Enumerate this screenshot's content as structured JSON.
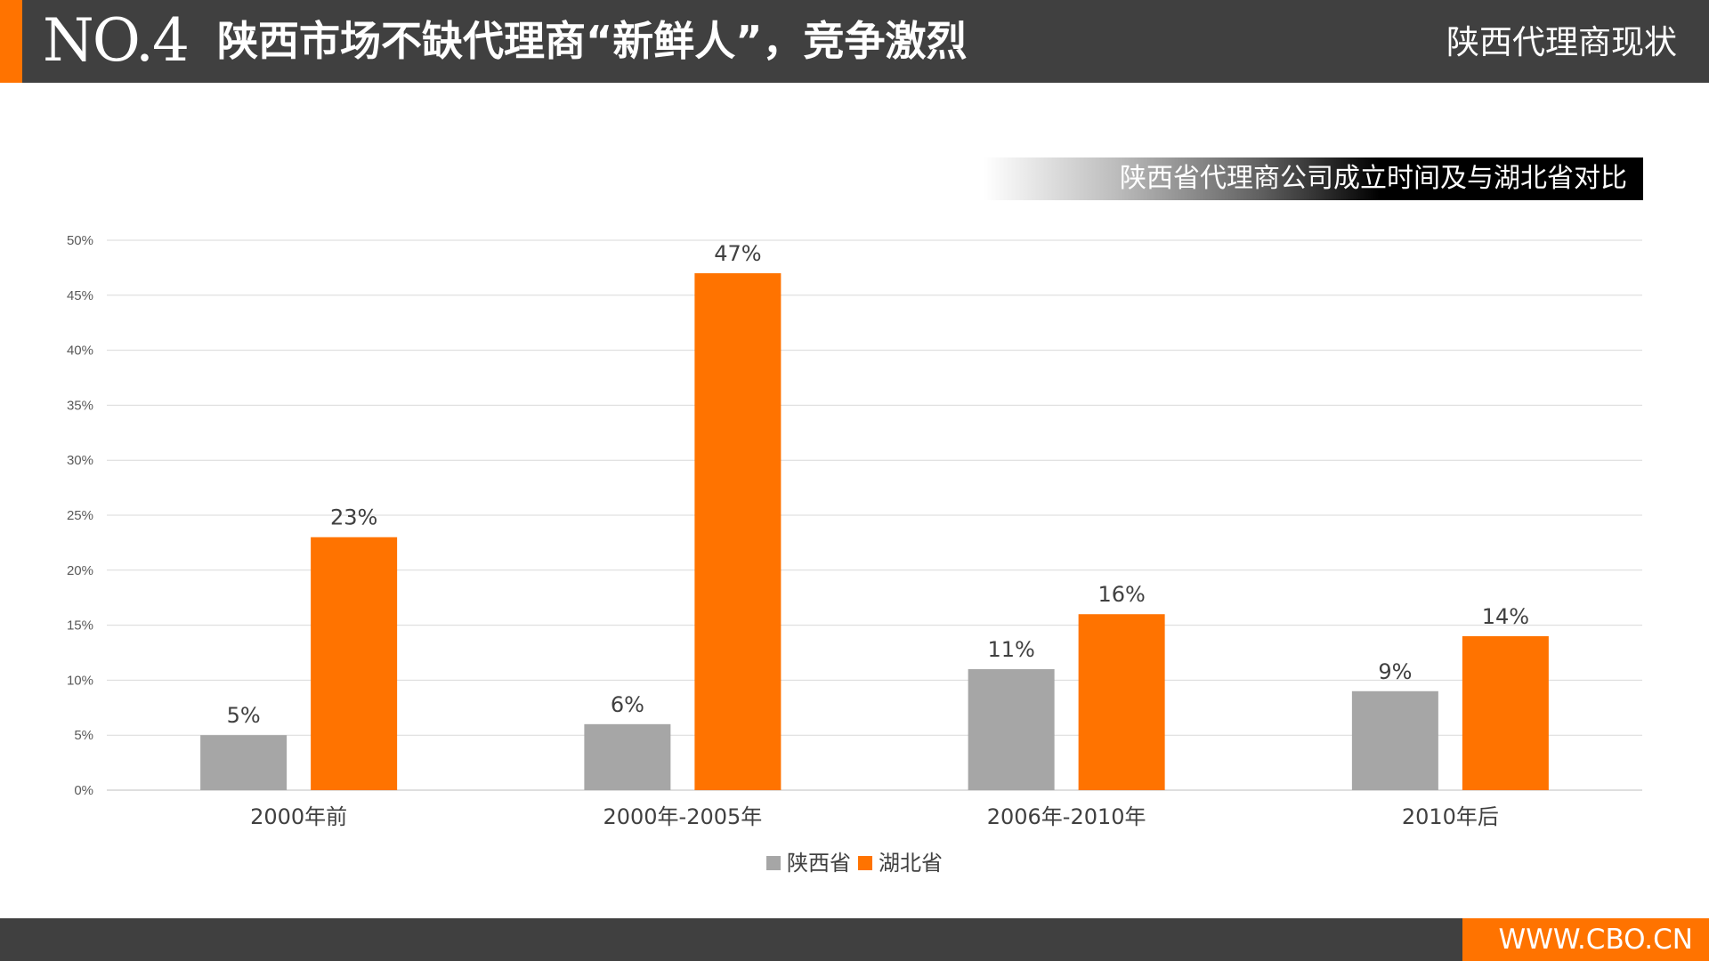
{
  "header": {
    "number": "NO.4",
    "title": "陕西市场不缺代理商“新鲜人”，竞争激烈",
    "section": "陕西代理商现状"
  },
  "chart_subtitle": "陕西省代理商公司成立时间及与湖北省对比",
  "footer": {
    "site": "WWW.CBO.CN"
  },
  "colors": {
    "accent": "#ff7300",
    "dark": "#404040",
    "shaanxi": "#a6a6a6",
    "hubei": "#ff7300"
  },
  "chart_data": {
    "type": "bar",
    "categories": [
      "2000年前",
      "2000年-2005年",
      "2006年-2010年",
      "2010年后"
    ],
    "series": [
      {
        "name": "陕西省",
        "values": [
          5,
          6,
          11,
          9
        ],
        "labels": [
          "5%",
          "6%",
          "11%",
          "9%"
        ],
        "color": "#a6a6a6"
      },
      {
        "name": "湖北省",
        "values": [
          23,
          47,
          16,
          14
        ],
        "labels": [
          "23%",
          "47%",
          "16%",
          "14%"
        ],
        "color": "#ff7300"
      }
    ],
    "ylim": [
      0,
      50
    ],
    "yticks": [
      0,
      5,
      10,
      15,
      20,
      25,
      30,
      35,
      40,
      45,
      50
    ],
    "ytick_labels": [
      "0%",
      "5%",
      "10%",
      "15%",
      "20%",
      "25%",
      "30%",
      "35%",
      "40%",
      "45%",
      "50%"
    ],
    "grid": true,
    "legend": "bottom-center"
  }
}
